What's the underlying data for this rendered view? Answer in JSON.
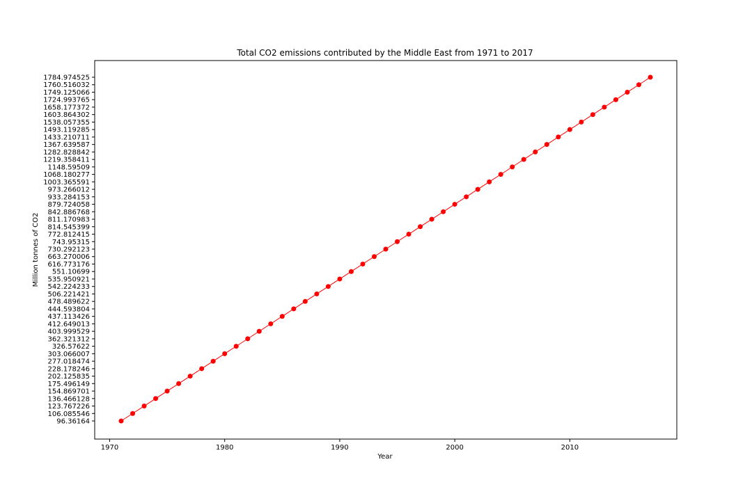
{
  "chart_data": {
    "type": "line",
    "title": "Total CO2 emissions contributed by the Middle East from 1971 to 2017",
    "xlabel": "Year",
    "ylabel": "Million tonnes of CO2",
    "xlim": [
      1968.7,
      2019.3
    ],
    "x_ticks": [
      1970,
      1980,
      1990,
      2000,
      2010
    ],
    "y_axis_kind": "categorical",
    "line_color": "#ff0000",
    "marker_color": "#ff0000",
    "grid": false,
    "series": [
      {
        "name": "Middle East",
        "x": [
          1971,
          1972,
          1973,
          1974,
          1975,
          1976,
          1977,
          1978,
          1979,
          1980,
          1981,
          1982,
          1983,
          1984,
          1985,
          1986,
          1987,
          1988,
          1989,
          1990,
          1991,
          1992,
          1993,
          1994,
          1995,
          1996,
          1997,
          1998,
          1999,
          2000,
          2001,
          2002,
          2003,
          2004,
          2005,
          2006,
          2007,
          2008,
          2009,
          2010,
          2011,
          2012,
          2013,
          2014,
          2015,
          2016,
          2017
        ],
        "values": [
          "96.36164",
          "106.085546",
          "123.767226",
          "136.466128",
          "154.869701",
          "175.496149",
          "202.125835",
          "228.178246",
          "277.018474",
          "303.066007",
          "326.57622",
          "362.321312",
          "403.999529",
          "412.649013",
          "437.113426",
          "444.593804",
          "478.489622",
          "506.221421",
          "542.224233",
          "535.950921",
          "551.10699",
          "616.773176",
          "663.270006",
          "730.292123",
          "743.95315",
          "772.812415",
          "814.545399",
          "811.170983",
          "842.886768",
          "879.724058",
          "933.284153",
          "973.266012",
          "1003.365591",
          "1068.180277",
          "1148.59509",
          "1219.358411",
          "1282.828842",
          "1367.639587",
          "1433.210711",
          "1493.119285",
          "1538.057355",
          "1603.864302",
          "1658.177372",
          "1724.993765",
          "1749.125066",
          "1760.516032",
          "1784.974525"
        ]
      }
    ]
  }
}
